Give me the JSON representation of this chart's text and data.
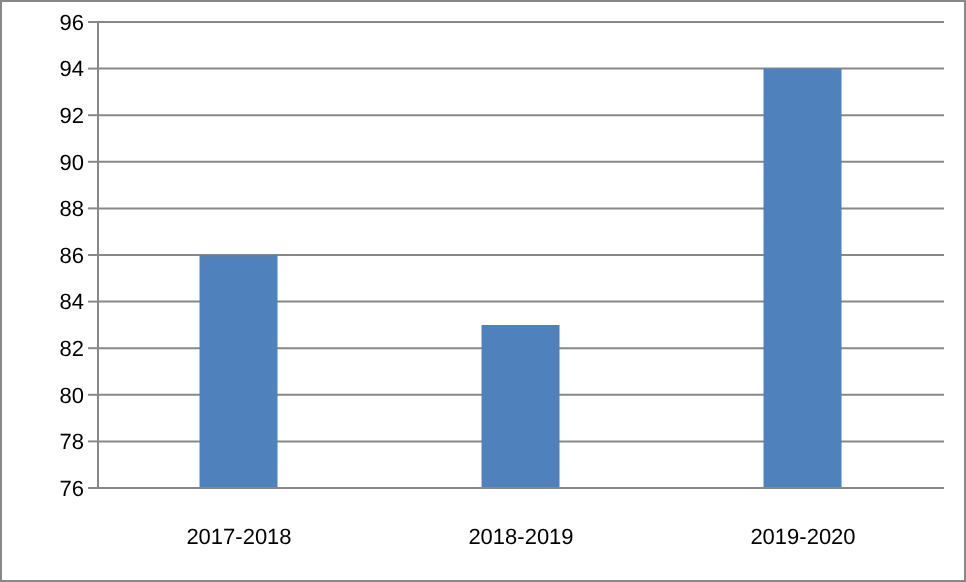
{
  "chart_data": {
    "type": "bar",
    "categories": [
      "2017-2018",
      "2018-2019",
      "2019-2020"
    ],
    "values": [
      86,
      83,
      94
    ],
    "color": "#4f81bd",
    "ylim": [
      76,
      96
    ],
    "yticks": [
      76,
      78,
      80,
      82,
      84,
      86,
      88,
      90,
      92,
      94,
      96
    ],
    "grid": "y"
  }
}
